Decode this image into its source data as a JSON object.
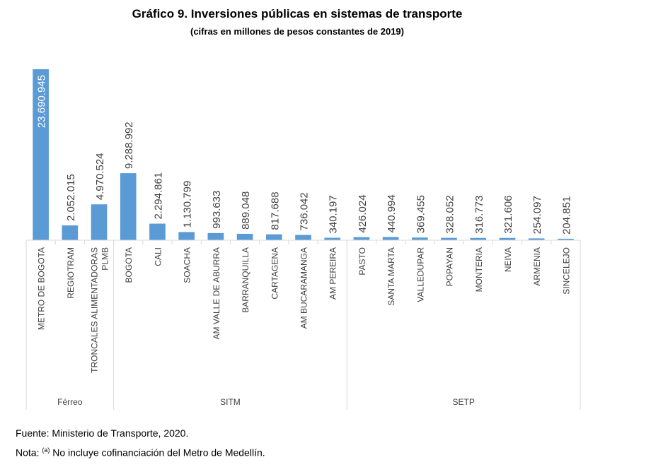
{
  "title": "Gráfico 9. Inversiones públicas en sistemas de transporte",
  "subtitle": "(cifras en millones de pesos constantes de 2019)",
  "source": "Fuente: Ministerio de Transporte, 2020.",
  "note": {
    "prefix": "Nota: ",
    "marker": "(a)",
    "text": " No incluye cofinanciación del Metro de Medellín."
  },
  "colors": {
    "bar": "#5B9BD5",
    "axis": "#D9D9D9",
    "label": "#404040"
  },
  "chart_data": {
    "type": "bar",
    "categories": [
      "METRO DE BOGOTA",
      "REGIOTRAM",
      "TRONCALES ALIMENTADORAS PLMB",
      "BOGOTA",
      "CALI",
      "SOACHA",
      "AM VALLE DE ABURRA",
      "BARRANQUILLA",
      "CARTAGENA",
      "AM BUCARAMANGA",
      "AM PEREIRA",
      "PASTO",
      "SANTA MARTA",
      "VALLEDUPAR",
      "POPAYAN",
      "MONTERIA",
      "NEIVA",
      "ARMENIA",
      "SINCELEJO"
    ],
    "category_lines": [
      [
        "METRO DE BOGOTA"
      ],
      [
        "REGIOTRAM"
      ],
      [
        "TRONCALES ALIMENTADORAS",
        "PLMB"
      ],
      [
        "BOGOTA"
      ],
      [
        "CALI"
      ],
      [
        "SOACHA"
      ],
      [
        "AM VALLE DE ABURRA"
      ],
      [
        "BARRANQUILLA"
      ],
      [
        "CARTAGENA"
      ],
      [
        "AM BUCARAMANGA"
      ],
      [
        "AM PEREIRA"
      ],
      [
        "PASTO"
      ],
      [
        "SANTA MARTA"
      ],
      [
        "VALLEDUPAR"
      ],
      [
        "POPAYAN"
      ],
      [
        "MONTERIA"
      ],
      [
        "NEIVA"
      ],
      [
        "ARMENIA"
      ],
      [
        "SINCELEJO"
      ]
    ],
    "values": [
      23690945,
      2052015,
      4970524,
      9288992,
      2294861,
      1130799,
      993633,
      889048,
      817688,
      736042,
      340197,
      426024,
      440994,
      369455,
      328052,
      316773,
      321606,
      254097,
      204851
    ],
    "value_labels": [
      "23.690.945",
      "2.052.015",
      "4.970.524",
      "9.288.992",
      "2.294.861",
      "1.130.799",
      "993.633",
      "889.048",
      "817.688",
      "736.042",
      "340.197",
      "426.024",
      "440.994",
      "369.455",
      "328.052",
      "316.773",
      "321.606",
      "254.097",
      "204.851"
    ],
    "groups": [
      {
        "name": "Férreo",
        "count": 3
      },
      {
        "name": "SITM",
        "count": 8
      },
      {
        "name": "SETP",
        "count": 8
      }
    ],
    "ylim": [
      0,
      23690945
    ]
  }
}
